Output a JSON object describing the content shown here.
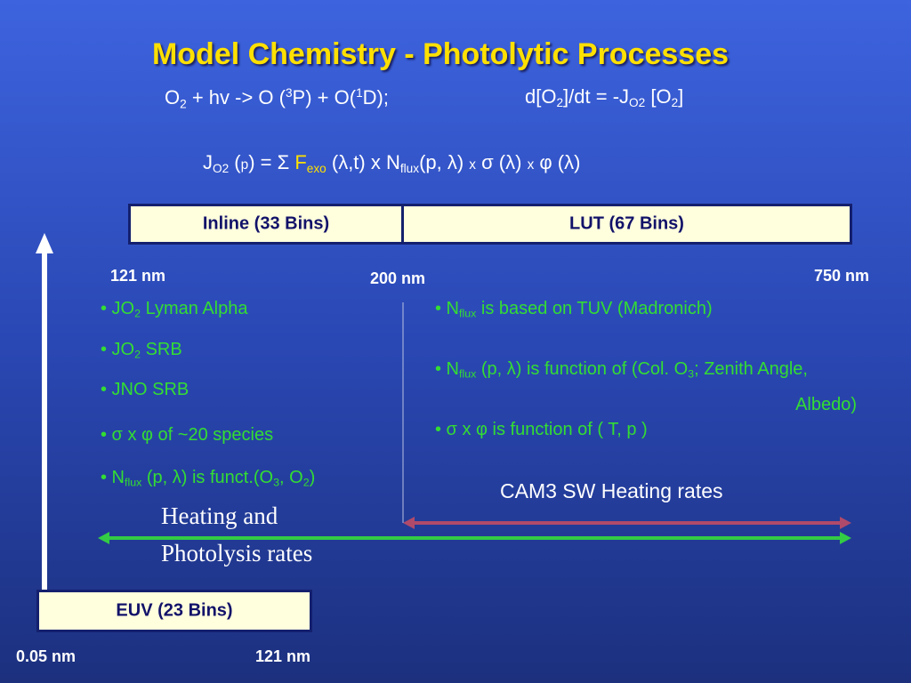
{
  "title": "Model Chemistry - Photolytic Processes",
  "equation_1": [
    "O",
    "2",
    " + hv -> O (",
    "3",
    "P) + O(",
    "1",
    "D);"
  ],
  "equation_2": [
    "d[O",
    "2",
    "]/dt = -J",
    "O2",
    " [O",
    "2",
    "]"
  ],
  "equation_3": [
    "J",
    "O2",
    " (",
    "p",
    ") = Σ ",
    "F",
    "exo",
    " (λ,t) x N",
    "flux",
    "(p, λ) ",
    "x",
    " σ (λ) ",
    "x",
    " φ (λ)"
  ],
  "bins": {
    "inline": "Inline (33 Bins)",
    "lut": "LUT (67 Bins)",
    "euv": "EUV (23 Bins)"
  },
  "wavelengths": {
    "top_left": "121 nm",
    "top_middle": "200 nm",
    "top_right": "750 nm",
    "bottom_left": "0.05 nm",
    "bottom_right": "121 nm"
  },
  "left_bullets": [
    [
      "• JO",
      "2",
      " Lyman Alpha"
    ],
    [
      "• JO",
      "2",
      " SRB"
    ],
    [
      "• JNO SRB"
    ],
    [
      "• σ x φ  of ~20 species"
    ],
    [
      "• N",
      "flux",
      " (p, λ) is funct.(O",
      "3",
      ", O",
      "2",
      ")"
    ]
  ],
  "right_bullets": [
    [
      "• N",
      "flux",
      " is based on TUV (Madronich)"
    ],
    [
      "• N",
      "flux",
      " (p, λ) is function of (Col. O",
      "3",
      "; Zenith Angle, Albedo)"
    ],
    [
      "• σ x φ is function of ( T, p )"
    ]
  ],
  "cam3_label": "CAM3 SW Heating rates",
  "heating_label": [
    "Heating and",
    "Photolysis rates"
  ]
}
